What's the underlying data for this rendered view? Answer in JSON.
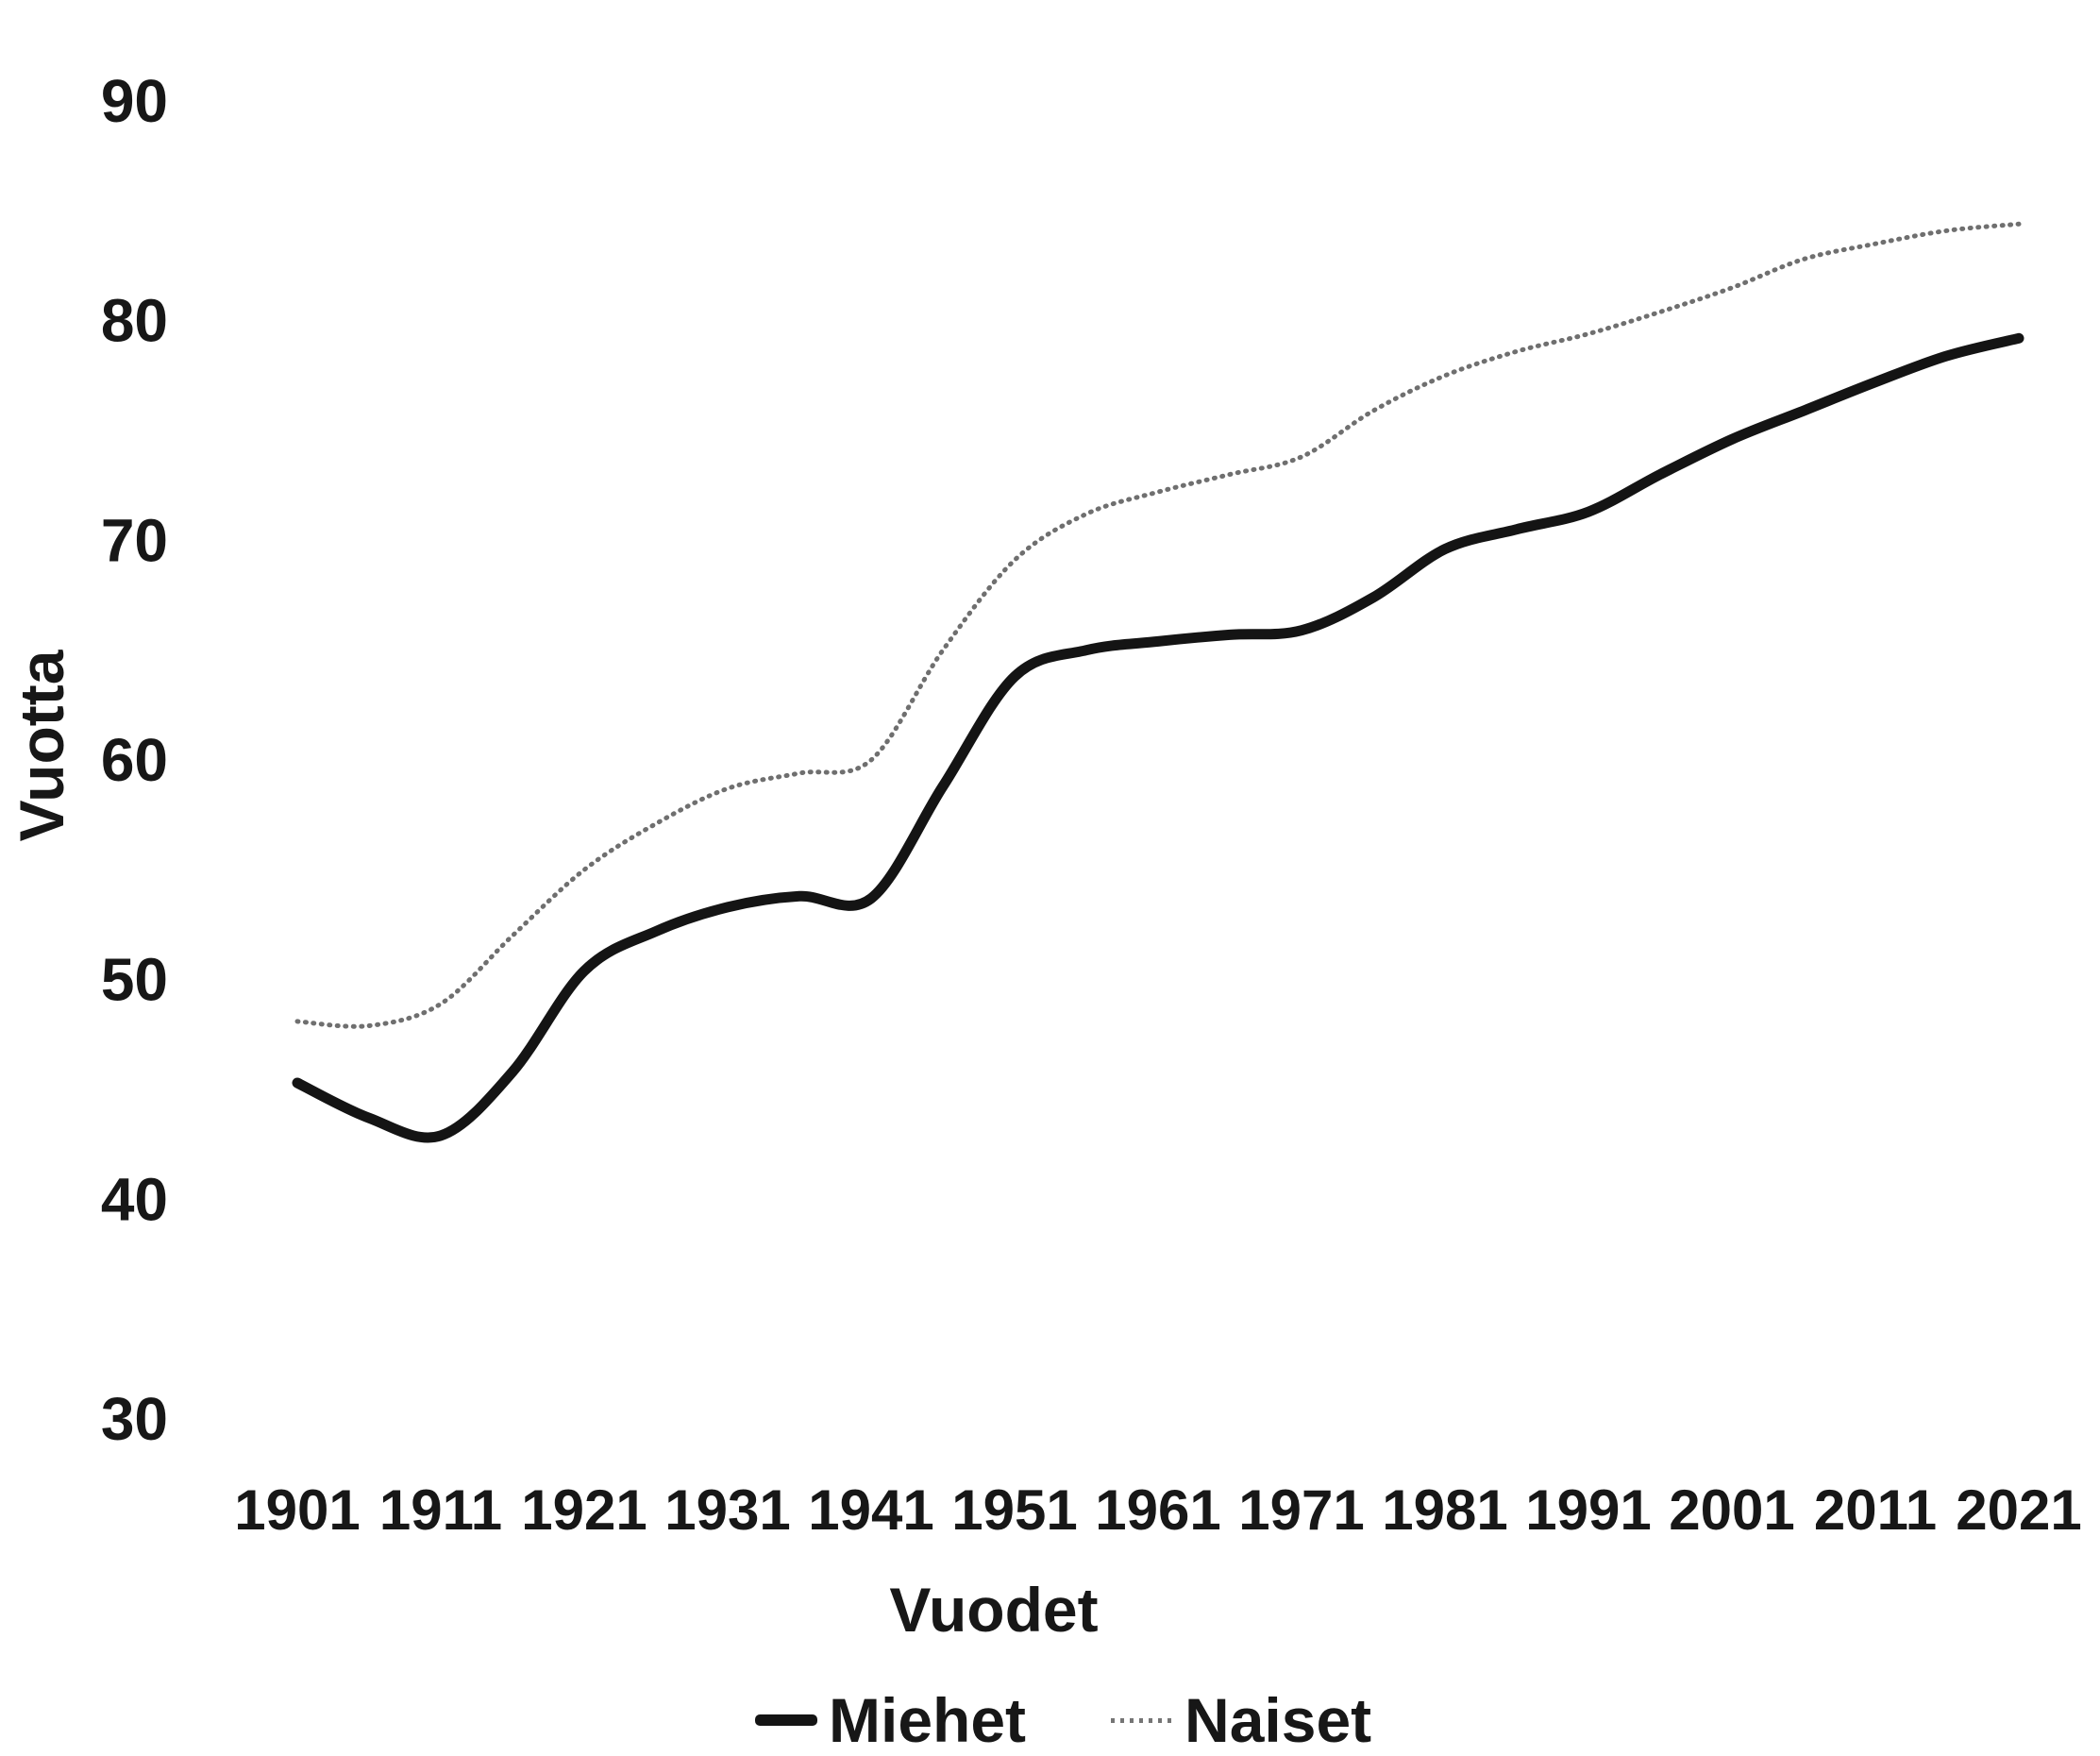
{
  "page": {
    "background": "#ffffff",
    "text_color": "#171717"
  },
  "y_axis": {
    "title": "Vuotta",
    "ticks": [
      90,
      80,
      70,
      60,
      50,
      40,
      30
    ]
  },
  "x_axis": {
    "title": "Vuodet",
    "ticks": [
      1901,
      1911,
      1921,
      1931,
      1941,
      1951,
      1961,
      1971,
      1981,
      1991,
      2001,
      2011,
      2021
    ]
  },
  "legend": [
    {
      "label": "Miehet",
      "style": "solid",
      "color": "#141414"
    },
    {
      "label": "Naiset",
      "style": "dotted",
      "color": "#6f6f6f"
    }
  ],
  "chart_data": {
    "type": "line",
    "title": "",
    "xlabel": "Vuodet",
    "ylabel": "Vuotta",
    "xlim": [
      1901,
      2021
    ],
    "ylim": [
      30,
      90
    ],
    "grid": false,
    "legend_position": "bottom",
    "x": [
      1901,
      1906,
      1911,
      1916,
      1921,
      1926,
      1931,
      1936,
      1941,
      1946,
      1951,
      1956,
      1961,
      1966,
      1971,
      1976,
      1981,
      1986,
      1991,
      1996,
      2001,
      2006,
      2011,
      2016,
      2021
    ],
    "series": [
      {
        "name": "Miehet",
        "style": "solid",
        "color": "#141414",
        "stroke_width": 11,
        "values": [
          45.3,
          43.7,
          42.9,
          45.8,
          50.4,
          52.2,
          53.3,
          53.8,
          53.7,
          58.8,
          63.8,
          65.0,
          65.4,
          65.7,
          65.9,
          67.4,
          69.6,
          70.5,
          71.3,
          73.0,
          74.6,
          75.9,
          77.2,
          78.4,
          79.2
        ]
      },
      {
        "name": "Naiset",
        "style": "dotted",
        "color": "#6f6f6f",
        "stroke_width": 5,
        "values": [
          48.1,
          47.9,
          48.9,
          52.0,
          55.0,
          57.1,
          58.7,
          59.4,
          60.0,
          65.0,
          69.1,
          71.2,
          72.2,
          73.0,
          73.8,
          75.9,
          77.5,
          78.6,
          79.4,
          80.4,
          81.5,
          82.8,
          83.5,
          84.1,
          84.4
        ]
      }
    ]
  }
}
